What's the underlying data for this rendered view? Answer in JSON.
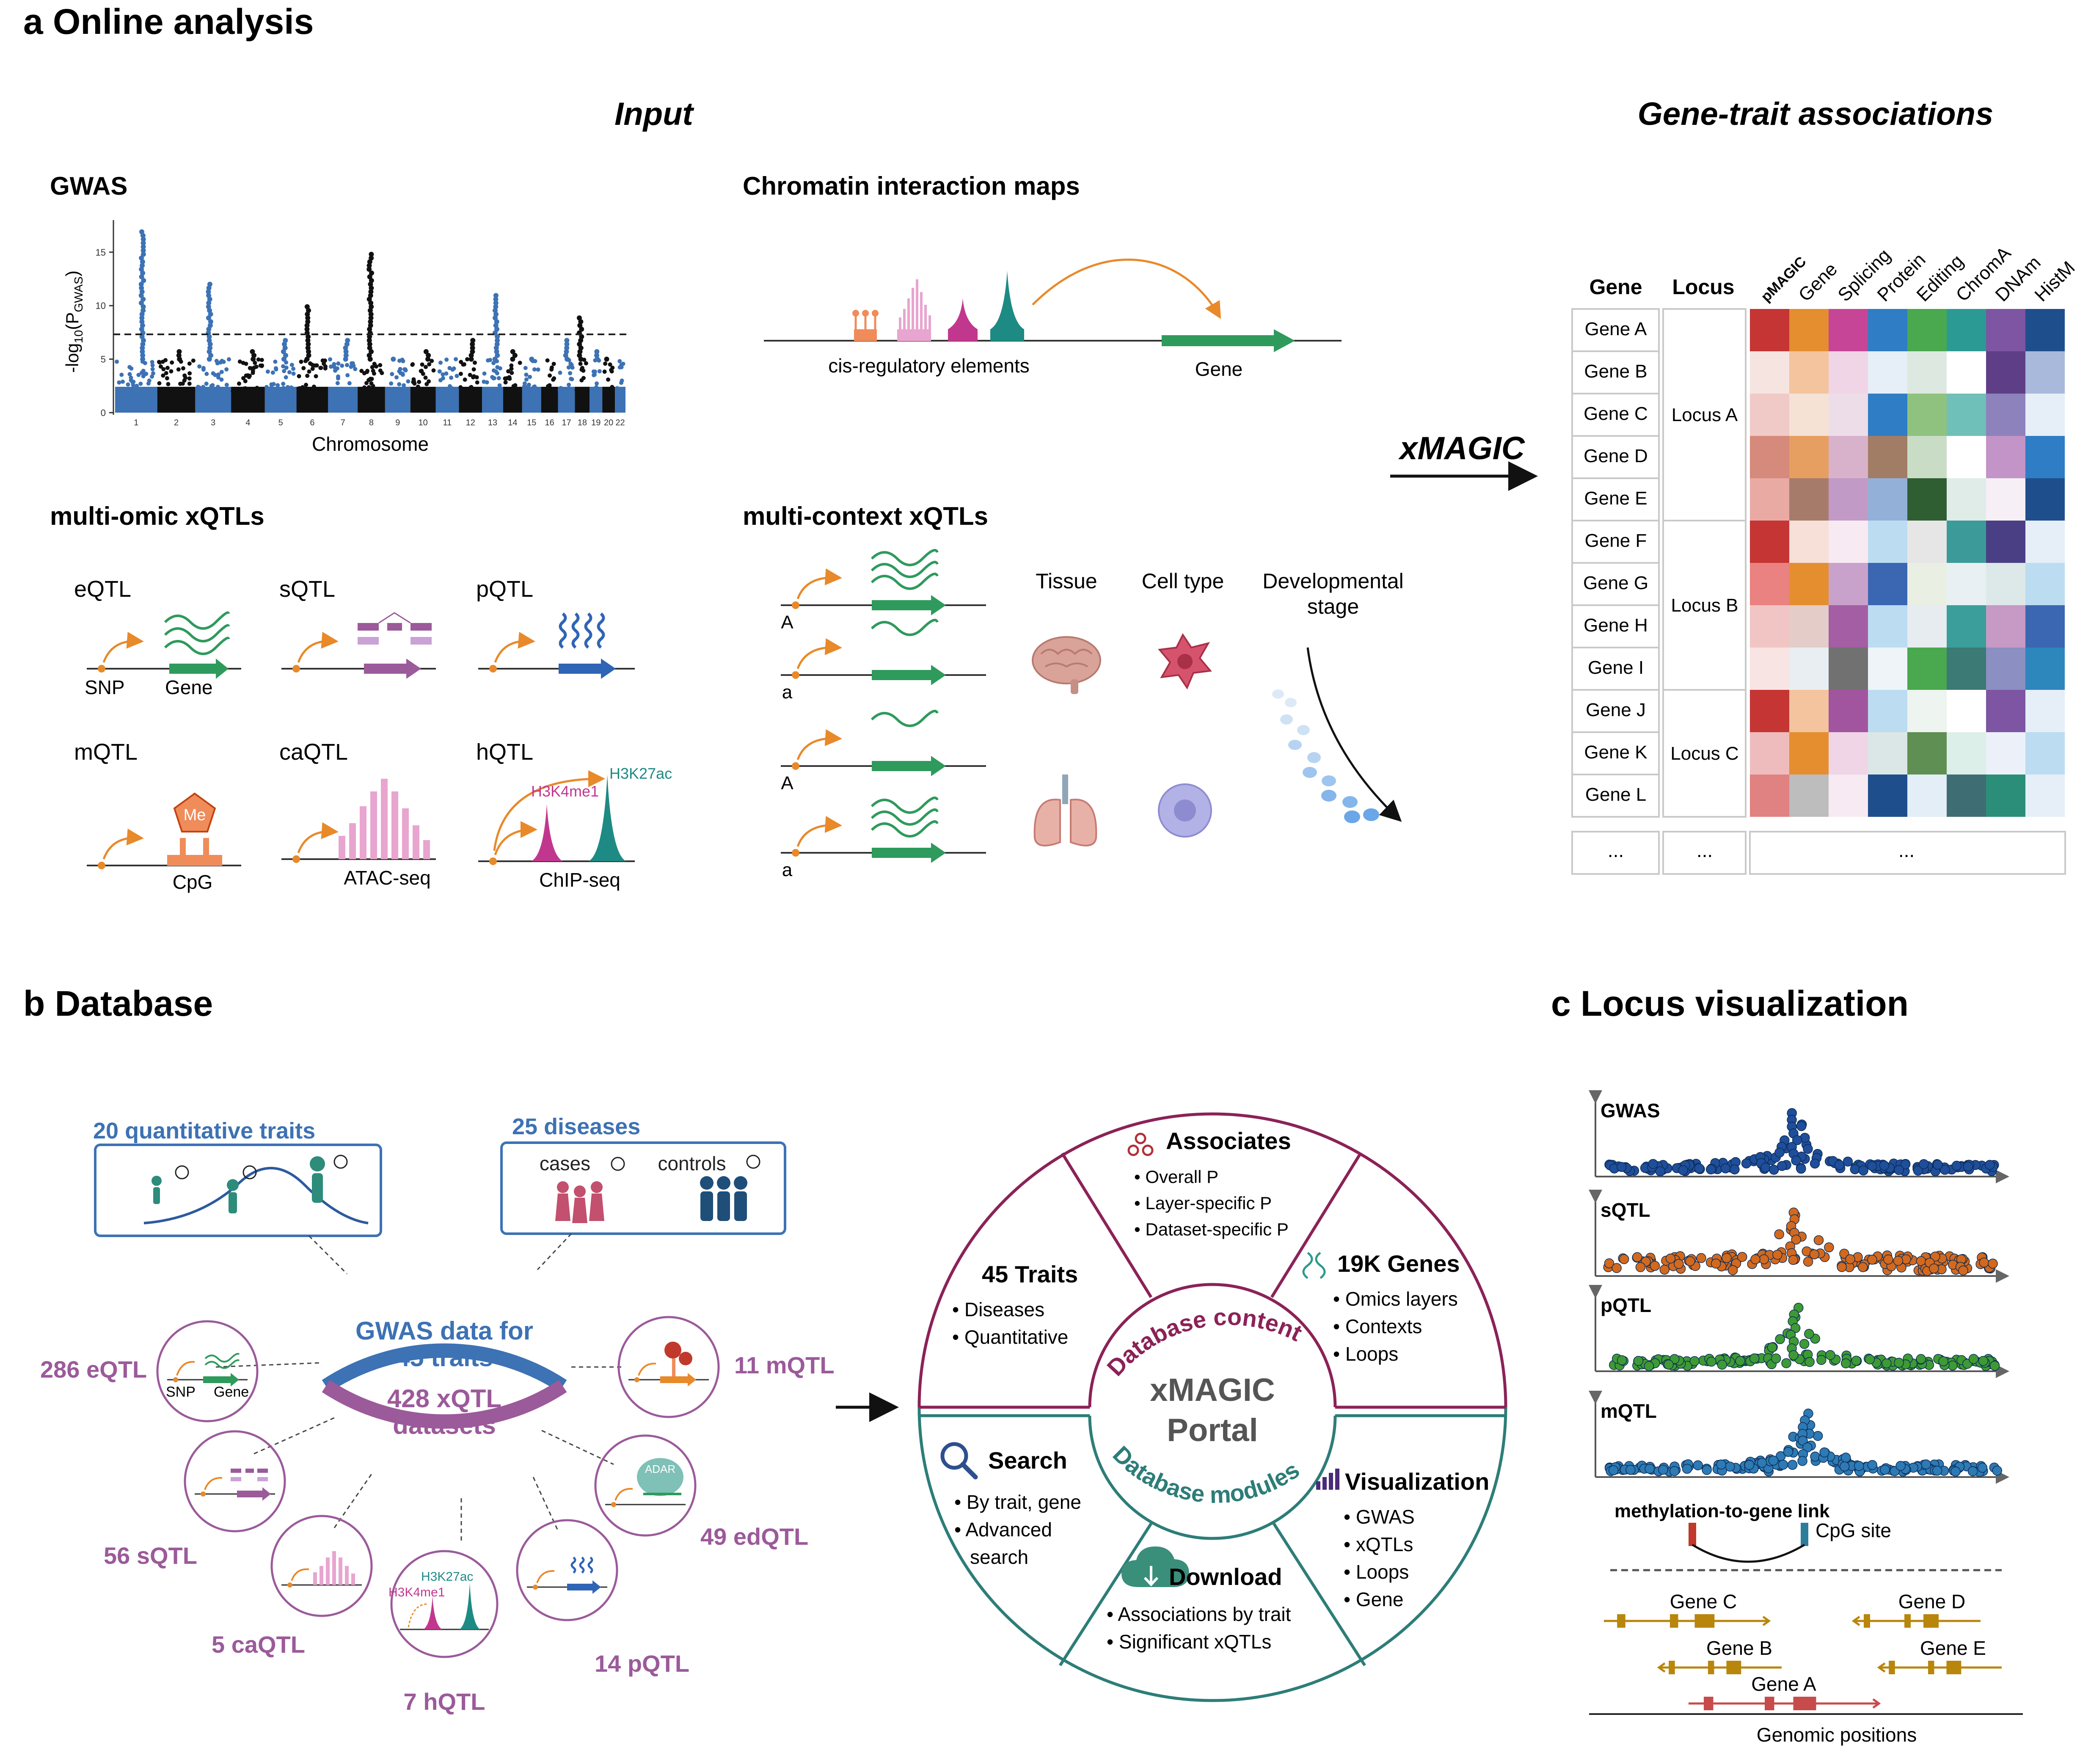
{
  "panel_a": {
    "heading": "a  Online analysis",
    "input_title": "Input",
    "output_title": "Gene-trait associations",
    "gwas": {
      "title": "GWAS",
      "ylabel_pre": "-log",
      "ylabel_sub": "10",
      "ylabel_post": "(P",
      "ylabel_sub2": "GWAS",
      "ylabel_end": ")",
      "xlabel": "Chromosome",
      "yticks": [
        "0",
        "5",
        "10",
        "15"
      ],
      "chromosomes": [
        "1",
        "2",
        "3",
        "4",
        "5",
        "6",
        "7",
        "8",
        "9",
        "10",
        "11",
        "12",
        "13",
        "14",
        "15",
        "16",
        "17",
        "18",
        "19",
        "20",
        "22"
      ]
    },
    "chromatin": {
      "title": "Chromatin interaction maps",
      "cre_label": "cis-regulatory elements",
      "gene_label": "Gene"
    },
    "multi_omic": {
      "title": "multi-omic xQTLs",
      "eqtl": "eQTL",
      "sqtl": "sQTL",
      "pqtl": "pQTL",
      "mqtl": "mQTL",
      "caqtl": "caQTL",
      "hqtl": "hQTL",
      "snp": "SNP",
      "gene": "Gene",
      "me": "Me",
      "cpg": "CpG",
      "atac": "ATAC-seq",
      "chip": "ChIP-seq",
      "h3k27ac": "H3K27ac",
      "h3k4me1": "H3K4me1"
    },
    "multi_context": {
      "title": "multi-context xQTLs",
      "allele_upper": "A",
      "allele_lower": "a",
      "tissue": "Tissue",
      "cell_type": "Cell type",
      "dev_stage_1": "Developmental",
      "dev_stage_2": "stage"
    },
    "xmagic": "xMAGIC",
    "table": {
      "gene_header": "Gene",
      "locus_header": "Locus",
      "layers": [
        "pMAGIC",
        "Gene",
        "Splicing",
        "Protein",
        "Editing",
        "ChromA",
        "DNAm",
        "HistM"
      ],
      "genes": [
        "Gene A",
        "Gene B",
        "Gene C",
        "Gene D",
        "Gene E",
        "Gene F",
        "Gene G",
        "Gene H",
        "Gene I",
        "Gene J",
        "Gene K",
        "Gene L"
      ],
      "loci": [
        "Locus A",
        "Locus B",
        "Locus C"
      ],
      "ellipsis": "..."
    }
  },
  "panel_b": {
    "heading": "b  Database",
    "quant_traits": "20 quantitative traits",
    "diseases": "25 diseases",
    "cases": "cases",
    "controls": "controls",
    "center_line1": "GWAS data for",
    "center_line2": "45 traits",
    "center_line3": "428 xQTL",
    "center_line4": "datasets",
    "eqtl_count": "286 eQTL",
    "sqtl_count": "56 sQTL",
    "caqtl_count": "5 caQTL",
    "hqtl_count": "7 hQTL",
    "pqtl_count": "14 pQTL",
    "edqtl_count": "49 edQTL",
    "mqtl_count": "11 mQTL",
    "snp": "SNP",
    "gene": "Gene",
    "h3k27ac": "H3K27ac",
    "h3k4me1": "H3K4me1",
    "adar": "ADAR",
    "portal": {
      "line1": "xMAGIC",
      "line2": "Portal",
      "content_arc": "Database content",
      "modules_arc": "Database modules",
      "associates": {
        "title": "Associates",
        "items": [
          "Overall P",
          "Layer-specific P",
          "Dataset-specific P"
        ]
      },
      "traits": {
        "title": "45 Traits",
        "items": [
          "Diseases",
          "Quantitative"
        ]
      },
      "genes": {
        "title": "19K Genes",
        "items": [
          "Omics layers",
          "Contexts",
          "Loops"
        ]
      },
      "search": {
        "title": "Search",
        "items": [
          "By trait, gene",
          "Advanced",
          "search"
        ]
      },
      "visualization": {
        "title": "Visualization",
        "items": [
          "GWAS",
          "xQTLs",
          "Loops",
          "Gene"
        ]
      },
      "download": {
        "title": "Download",
        "items": [
          "Associations by trait",
          "Significant xQTLs"
        ]
      }
    }
  },
  "panel_c": {
    "heading": "c  Locus visualization",
    "tracks": [
      "GWAS",
      "sQTL",
      "pQTL",
      "mQTL"
    ],
    "methylation_link": "methylation-to-gene link",
    "cpg_site": "CpG site",
    "genes": [
      "Gene C",
      "Gene D",
      "Gene B",
      "Gene E",
      "Gene A"
    ],
    "xlabel": "Genomic positions"
  },
  "colors": {
    "blue": "#3d72b4",
    "purple": "#9b5a9a",
    "teal": "#2d7d78",
    "maroon": "#8b2257",
    "orange": "#e8892a",
    "green": "#2e9a5c"
  }
}
